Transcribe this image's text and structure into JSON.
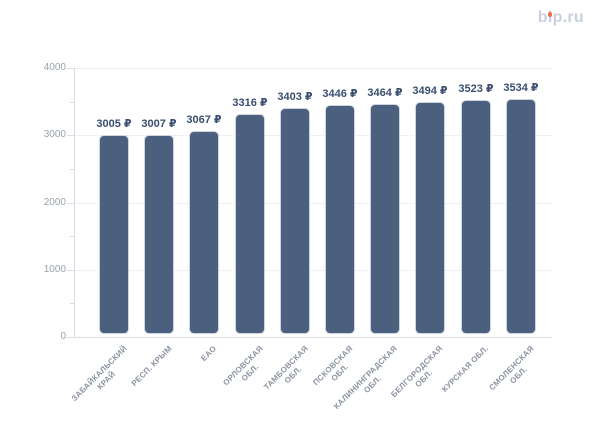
{
  "logo": {
    "text": "bip.ru",
    "color": "#c8cfde",
    "dot_color": "#f26a4f"
  },
  "chart_data": {
    "type": "bar",
    "title": "",
    "xlabel": "",
    "ylabel": "",
    "categories": [
      "ЗАБАЙКАЛЬСКИЙ\nКРАЙ",
      "РЕСП. КРЫМ",
      "ЕАО",
      "ОРЛОВСКАЯ\nОБЛ.",
      "ТАМБОВСКАЯ\nОБЛ.",
      "ПСКОВСКАЯ\nОБЛ.",
      "КАЛИНИНГРАДСКАЯ\nОБЛ.",
      "БЕЛГОРОДСКАЯ\nОБЛ.",
      "КУРСКАЯ ОБЛ.",
      "СМОЛЕНСКАЯ\nОБЛ."
    ],
    "values": [
      3005,
      3007,
      3067,
      3316,
      3403,
      3446,
      3464,
      3494,
      3523,
      3534
    ],
    "value_suffix": " ₽",
    "ylim": [
      0,
      4000
    ],
    "y_ticks": [
      0,
      1000,
      2000,
      3000,
      4000
    ],
    "y_minor_step": 500,
    "grid": "horizontal dotted lines at 1000 steps",
    "legend": "none",
    "colors": {
      "bar_fill": "#4b5f7e",
      "bar_border": "#ccd4df",
      "gridline": "#e0e4ea",
      "axis_line": "#d9dee6",
      "y_label": "#9aa2ad",
      "x_label": "#8b93a2",
      "value_label": "#394e70"
    }
  }
}
